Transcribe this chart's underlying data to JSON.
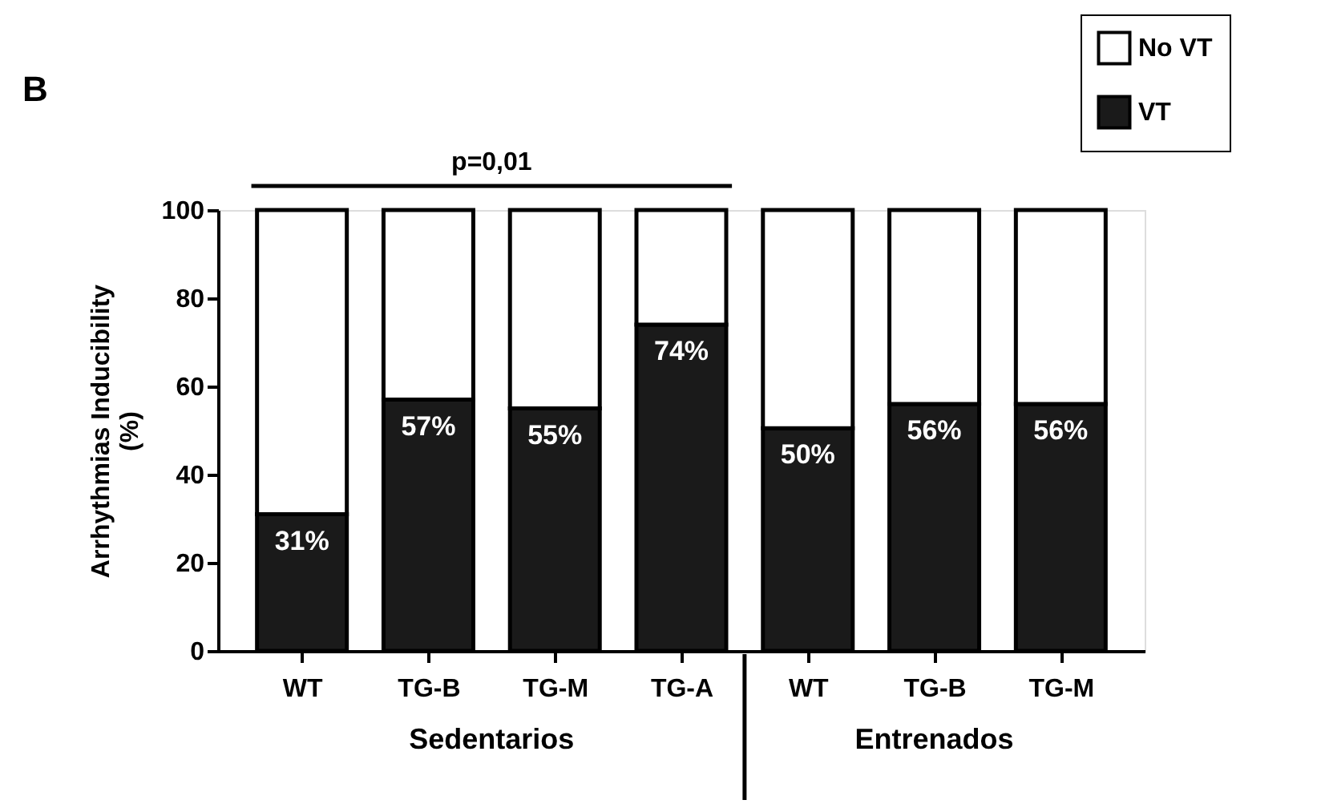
{
  "chart_data": {
    "type": "bar",
    "title": "B",
    "ylabel": "Arrhythmias Inducibility\n(%)",
    "categories": [
      "WT",
      "TG-B",
      "TG-M",
      "TG-A",
      "WT",
      "TG-B",
      "TG-M"
    ],
    "stacked": true,
    "series": [
      {
        "name": "VT",
        "color": "#1a1a1a",
        "values": [
          31,
          57,
          55,
          74,
          50.5,
          56,
          56
        ],
        "value_labels": [
          "31%",
          "57%",
          "55%",
          "74%",
          "50%",
          "56%",
          "56%"
        ]
      },
      {
        "name": "No VT",
        "color": "#ffffff",
        "values": [
          69,
          43,
          45,
          26,
          49.5,
          44,
          44
        ]
      }
    ],
    "ylim": [
      0,
      100
    ],
    "yticks": [
      0,
      20,
      40,
      60,
      80,
      100
    ],
    "annotations": [
      "p=0,01",
      "Sedentarios",
      "Entrenados"
    ],
    "legend": "top right",
    "grid": false
  }
}
